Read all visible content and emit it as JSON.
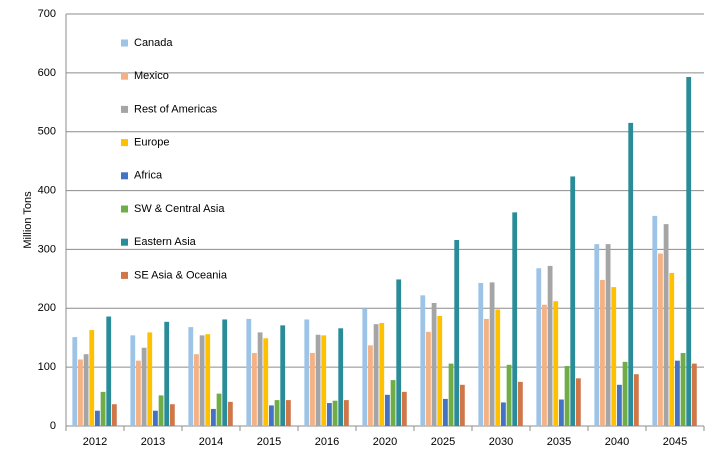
{
  "chart_data": {
    "type": "bar",
    "y_label": "Million Tons",
    "categories": [
      "2012",
      "2013",
      "2014",
      "2015",
      "2016",
      "2020",
      "2025",
      "2030",
      "2035",
      "2040",
      "2045"
    ],
    "series": [
      {
        "name": "Canada",
        "color": "#9dc3e6",
        "values": [
          151,
          154,
          168,
          182,
          181,
          200,
          222,
          243,
          268,
          309,
          357
        ]
      },
      {
        "name": "Mexico",
        "color": "#f4b183",
        "values": [
          113,
          111,
          122,
          124,
          124,
          137,
          160,
          182,
          206,
          248,
          293
        ]
      },
      {
        "name": "Rest of Americas",
        "color": "#a5a5a5",
        "values": [
          122,
          133,
          154,
          159,
          155,
          173,
          209,
          244,
          272,
          309,
          343
        ]
      },
      {
        "name": "Europe",
        "color": "#ffc000",
        "values": [
          163,
          159,
          156,
          149,
          154,
          175,
          187,
          198,
          212,
          236,
          260
        ]
      },
      {
        "name": "Africa",
        "color": "#4472c4",
        "values": [
          26,
          26,
          29,
          35,
          39,
          53,
          46,
          40,
          45,
          70,
          111
        ]
      },
      {
        "name": "SW & Central Asia",
        "color": "#70ad47",
        "values": [
          58,
          52,
          55,
          44,
          43,
          78,
          106,
          104,
          102,
          109,
          124
        ]
      },
      {
        "name": "Eastern Asia",
        "color": "#2a8c99",
        "values": [
          186,
          177,
          181,
          171,
          166,
          249,
          316,
          363,
          424,
          515,
          593
        ]
      },
      {
        "name": "SE Asia & Oceania",
        "color": "#d0774a",
        "values": [
          37,
          37,
          41,
          44,
          44,
          58,
          70,
          75,
          81,
          88,
          106
        ]
      }
    ],
    "ylim": [
      0,
      700
    ],
    "yticks": [
      0,
      100,
      200,
      300,
      400,
      500,
      600,
      700
    ],
    "grid": true,
    "legend": "top-left"
  }
}
